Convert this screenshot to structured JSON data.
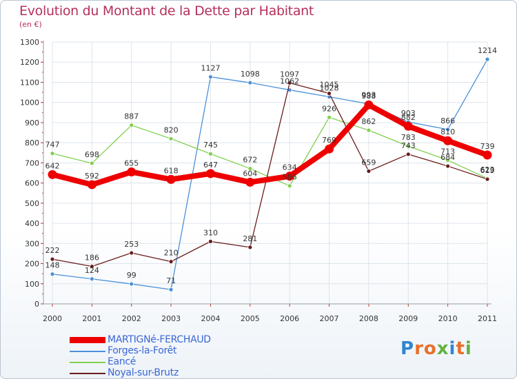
{
  "chart_data": {
    "type": "line",
    "title": "Evolution du Montant de la Dette par Habitant",
    "subtitle": "(en €)",
    "xlabel": "",
    "ylabel": "",
    "ylim": [
      0,
      1300
    ],
    "y_ticks": [
      0,
      100,
      200,
      300,
      400,
      500,
      600,
      700,
      800,
      900,
      1000,
      1100,
      1200,
      1300
    ],
    "x": [
      "2000",
      "2001",
      "2002",
      "2003",
      "2004",
      "2005",
      "2006",
      "2007",
      "2008",
      "2009",
      "2010",
      "2011"
    ],
    "grid": true,
    "legend_position": "bottom-left",
    "series": [
      {
        "name": "Forges-la-Forêt",
        "color": "#4a90d9",
        "values": [
          148,
          124,
          99,
          71,
          1127,
          1098,
          1062,
          1028,
          993,
          903,
          866,
          1214
        ]
      },
      {
        "name": "Eancé",
        "color": "#7fd04f",
        "values": [
          747,
          698,
          887,
          820,
          745,
          672,
          586,
          926,
          862,
          783,
          713,
          623
        ]
      },
      {
        "name": "Noyal-sur-Brutz",
        "color": "#6a1b1b",
        "values": [
          222,
          186,
          253,
          210,
          310,
          281,
          1097,
          1045,
          659,
          743,
          684,
          619
        ]
      },
      {
        "name": "MARTIGNé-FERCHAUD",
        "color": "#ee0000",
        "values": [
          642,
          592,
          655,
          618,
          647,
          604,
          634,
          769,
          988,
          882,
          810,
          739
        ]
      }
    ]
  },
  "legend": [
    {
      "label": "MARTIGNé-FERCHAUD",
      "color": "#ee0000",
      "thick": true
    },
    {
      "label": "Forges-la-Forêt",
      "color": "#4a90d9",
      "thick": false
    },
    {
      "label": "Eancé",
      "color": "#7fd04f",
      "thick": false
    },
    {
      "label": "Noyal-sur-Brutz",
      "color": "#6a1b1b",
      "thick": false
    }
  ],
  "brand": {
    "letters": [
      "P",
      "r",
      "o",
      "x",
      "i",
      "t",
      "i"
    ]
  }
}
